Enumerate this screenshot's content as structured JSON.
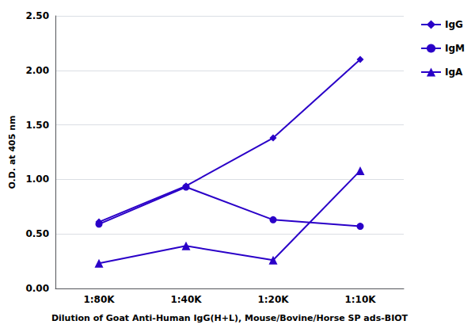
{
  "chart_data": {
    "type": "line",
    "categories": [
      "1:80K",
      "1:40K",
      "1:20K",
      "1:10K"
    ],
    "series": [
      {
        "name": "IgG",
        "values": [
          0.61,
          0.94,
          1.38,
          2.1
        ],
        "marker": "diamond"
      },
      {
        "name": "IgM",
        "values": [
          0.59,
          0.93,
          0.63,
          0.57
        ],
        "marker": "circle"
      },
      {
        "name": "IgA",
        "values": [
          0.23,
          0.39,
          0.26,
          1.08
        ],
        "marker": "triangle"
      }
    ],
    "color": "#2a00c8",
    "xlabel": "Dilution of Goat Anti-Human IgG(H+L), Mouse/Bovine/Horse SP ads-BIOT",
    "ylabel": "O.D. at 405 nm",
    "ylim": [
      0.0,
      2.5
    ],
    "yticks": [
      {
        "value": 0.0,
        "label": "0.00"
      },
      {
        "value": 0.5,
        "label": "0.50"
      },
      {
        "value": 1.0,
        "label": "1.00"
      },
      {
        "value": 1.5,
        "label": "1.50"
      },
      {
        "value": 2.0,
        "label": "2.00"
      },
      {
        "value": 2.5,
        "label": "2.50"
      }
    ],
    "grid": true,
    "legend": "right"
  }
}
